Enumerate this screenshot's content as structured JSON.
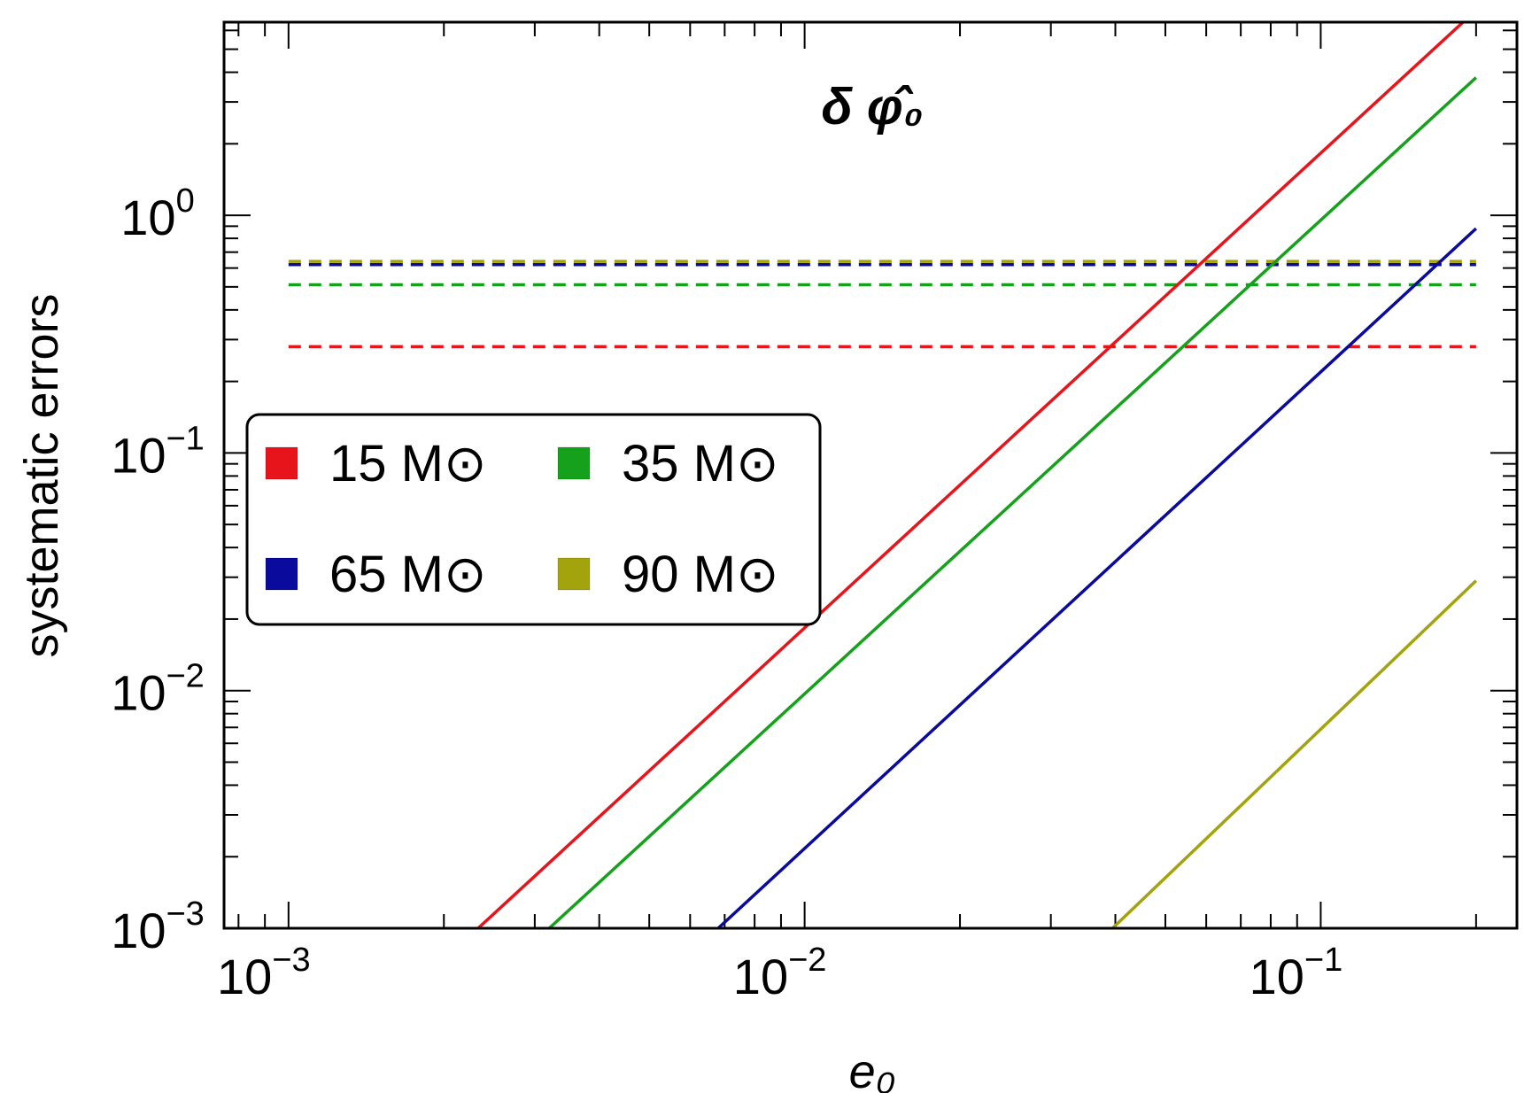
{
  "chart_data": {
    "type": "line",
    "title": "δ φ̂₀",
    "xlabel": "e₀",
    "ylabel": "systematic errors",
    "xscale": "log",
    "yscale": "log",
    "xlim": [
      0.00075,
      0.24
    ],
    "ylim": [
      0.001,
      6.5
    ],
    "x_ticks": [
      {
        "base": "10",
        "exp": "−3"
      },
      {
        "base": "10",
        "exp": "−2"
      },
      {
        "base": "10",
        "exp": "−1"
      }
    ],
    "y_ticks": [
      {
        "base": "10",
        "exp": "−3"
      },
      {
        "base": "10",
        "exp": "−2"
      },
      {
        "base": "10",
        "exp": "−1"
      },
      {
        "base": "10",
        "exp": "0"
      }
    ],
    "grid": false,
    "legend_position": "middle-left",
    "series": [
      {
        "name": "15 M⊙",
        "color": "#e8141b",
        "line_x": [
          0.00233,
          0.2
        ],
        "line_y": [
          0.001,
          7.3
        ],
        "dashed_level": 0.28
      },
      {
        "name": "35 M⊙",
        "color": "#15a11b",
        "line_x": [
          0.0032,
          0.2
        ],
        "line_y": [
          0.001,
          3.8
        ],
        "dashed_level": 0.51
      },
      {
        "name": "65 M⊙",
        "color": "#0a0a9c",
        "line_x": [
          0.0068,
          0.2
        ],
        "line_y": [
          0.001,
          0.88
        ],
        "dashed_level": 0.62
      },
      {
        "name": "90 M⊙",
        "color": "#a3a30e",
        "line_x": [
          0.0395,
          0.2
        ],
        "line_y": [
          0.001,
          0.029
        ],
        "dashed_level": 0.64
      }
    ],
    "dashed_x_range": [
      0.001,
      0.2
    ]
  }
}
